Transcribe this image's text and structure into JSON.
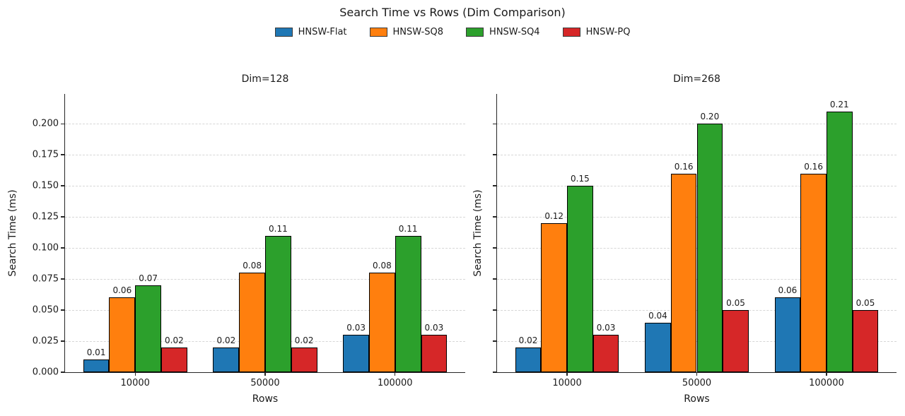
{
  "title": "Search Time vs Rows (Dim Comparison)",
  "legend": {
    "entries": [
      {
        "label": "HNSW-Flat",
        "color": "#1f77b4"
      },
      {
        "label": "HNSW-SQ8",
        "color": "#ff7f0e"
      },
      {
        "label": "HNSW-SQ4",
        "color": "#2ca02c"
      },
      {
        "label": "HNSW-PQ",
        "color": "#d62728"
      }
    ]
  },
  "colors": {
    "blue": "#1f77b4",
    "orange": "#ff7f0e",
    "green": "#2ca02c",
    "red": "#d62728",
    "grid": "#d6d6d6",
    "spine": "#262626"
  },
  "chart_data": [
    {
      "type": "bar",
      "title": "Dim=128",
      "xlabel": "Rows",
      "ylabel": "Search Time (ms)",
      "categories": [
        "10000",
        "50000",
        "100000"
      ],
      "series": [
        {
          "name": "HNSW-Flat",
          "color": "#1f77b4",
          "values": [
            0.01,
            0.02,
            0.03
          ]
        },
        {
          "name": "HNSW-SQ8",
          "color": "#ff7f0e",
          "values": [
            0.06,
            0.08,
            0.08
          ]
        },
        {
          "name": "HNSW-SQ4",
          "color": "#2ca02c",
          "values": [
            0.07,
            0.11,
            0.11
          ]
        },
        {
          "name": "HNSW-PQ",
          "color": "#d62728",
          "values": [
            0.02,
            0.02,
            0.03
          ]
        }
      ],
      "bar_labels": [
        [
          "0.01",
          "0.02",
          "0.03"
        ],
        [
          "0.06",
          "0.08",
          "0.08"
        ],
        [
          "0.07",
          "0.11",
          "0.11"
        ],
        [
          "0.02",
          "0.02",
          "0.03"
        ]
      ],
      "yticks": [
        "0.000",
        "0.025",
        "0.050",
        "0.075",
        "0.100",
        "0.125",
        "0.150",
        "0.175",
        "0.200"
      ],
      "ylim": [
        0,
        0.224
      ],
      "grid": true,
      "show_ytick_labels": true,
      "legend_position": "figure-top"
    },
    {
      "type": "bar",
      "title": "Dim=268",
      "xlabel": "Rows",
      "ylabel": "Search Time (ms)",
      "categories": [
        "10000",
        "50000",
        "100000"
      ],
      "series": [
        {
          "name": "HNSW-Flat",
          "color": "#1f77b4",
          "values": [
            0.02,
            0.04,
            0.06
          ]
        },
        {
          "name": "HNSW-SQ8",
          "color": "#ff7f0e",
          "values": [
            0.12,
            0.16,
            0.16
          ]
        },
        {
          "name": "HNSW-SQ4",
          "color": "#2ca02c",
          "values": [
            0.15,
            0.2,
            0.21
          ]
        },
        {
          "name": "HNSW-PQ",
          "color": "#d62728",
          "values": [
            0.03,
            0.05,
            0.05
          ]
        }
      ],
      "bar_labels": [
        [
          "0.02",
          "0.04",
          "0.06"
        ],
        [
          "0.12",
          "0.16",
          "0.16"
        ],
        [
          "0.15",
          "0.20",
          "0.21"
        ],
        [
          "0.03",
          "0.05",
          "0.05"
        ]
      ],
      "yticks": [
        "0.000",
        "0.025",
        "0.050",
        "0.075",
        "0.100",
        "0.125",
        "0.150",
        "0.175",
        "0.200"
      ],
      "ylim": [
        0,
        0.224
      ],
      "grid": true,
      "show_ytick_labels": false,
      "legend_position": "figure-top"
    }
  ]
}
